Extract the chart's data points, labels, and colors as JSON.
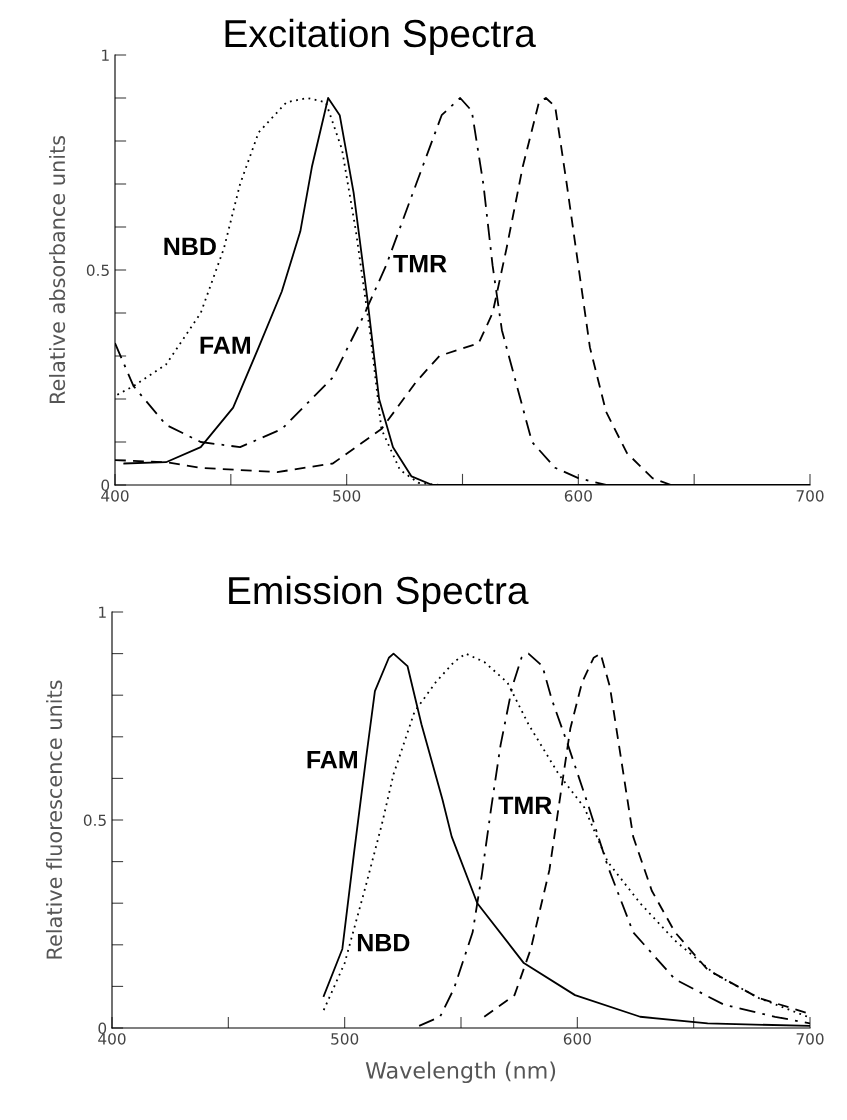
{
  "chart_data": [
    {
      "type": "line",
      "title": "Excitation Spectra",
      "ylabel": "Relative absorbance units",
      "xlim": [
        400,
        700
      ],
      "xticks": [
        400,
        {
          "value": 450,
          "label": null
        },
        500,
        {
          "value": 550,
          "label": null
        },
        600,
        {
          "value": 650,
          "label": null
        },
        700
      ],
      "ylim": [
        0,
        1
      ],
      "yticks": [
        0,
        {
          "value": 0.1,
          "label": null
        },
        {
          "value": 0.2,
          "label": null
        },
        {
          "value": 0.3,
          "label": null
        },
        {
          "value": 0.4,
          "label": null
        },
        0.5,
        {
          "value": 0.6,
          "label": null
        },
        {
          "value": 0.7,
          "label": null
        },
        {
          "value": 0.8,
          "label": null
        },
        {
          "value": 0.9,
          "label": null
        },
        1
      ],
      "grid": false,
      "legend": false,
      "marker": "none",
      "series": [
        {
          "color": "#000000",
          "line_style": "dotted",
          "x": [
            401,
            408,
            422,
            437,
            447,
            454,
            462,
            474,
            483,
            491,
            498,
            504,
            510,
            515,
            523,
            531,
            540,
            700
          ],
          "values": [
            0.21,
            0.23,
            0.28,
            0.4,
            0.55,
            0.7,
            0.82,
            0.89,
            0.9,
            0.89,
            0.78,
            0.59,
            0.36,
            0.13,
            0.035,
            0.005,
            0,
            0
          ]
        },
        {
          "color": "#000000",
          "line_style": "solid",
          "x": [
            404,
            422,
            437,
            451,
            462,
            472,
            480,
            485,
            492,
            497,
            503,
            509,
            514,
            520,
            528,
            537,
            700
          ],
          "values": [
            0.05,
            0.053,
            0.088,
            0.18,
            0.32,
            0.45,
            0.59,
            0.74,
            0.9,
            0.86,
            0.68,
            0.43,
            0.2,
            0.088,
            0.02,
            0,
            0
          ]
        },
        {
          "color": "#000000",
          "line_style": "dashdot",
          "x": [
            400,
            408,
            422,
            437,
            454,
            472,
            494,
            507,
            517,
            530,
            541,
            549,
            554,
            559,
            563,
            567,
            573,
            580,
            590,
            600,
            612,
            700
          ],
          "values": [
            0.33,
            0.23,
            0.14,
            0.1,
            0.088,
            0.13,
            0.25,
            0.39,
            0.51,
            0.7,
            0.86,
            0.9,
            0.87,
            0.7,
            0.51,
            0.36,
            0.24,
            0.1,
            0.04,
            0.016,
            0,
            0
          ]
        },
        {
          "color": "#000000",
          "line_style": "dashed",
          "x": [
            400,
            422,
            437,
            470,
            494,
            515,
            530,
            540,
            557,
            563,
            569,
            576,
            583,
            586,
            590,
            595,
            600,
            605,
            612,
            621,
            632,
            640,
            700
          ],
          "values": [
            0.058,
            0.053,
            0.04,
            0.03,
            0.05,
            0.13,
            0.24,
            0.3,
            0.33,
            0.4,
            0.55,
            0.74,
            0.89,
            0.9,
            0.88,
            0.7,
            0.51,
            0.32,
            0.17,
            0.074,
            0.016,
            0,
            0
          ]
        }
      ],
      "annotations": [
        {
          "text": "NBD",
          "x": 447,
          "y": 0.55
        },
        {
          "text": "FAM",
          "x": 462,
          "y": 0.32
        },
        {
          "text": "TMR",
          "x": 517,
          "y": 0.51
        }
      ]
    },
    {
      "type": "line",
      "title": "Emission Spectra",
      "ylabel": "Relative fluorescence units",
      "xlabel": "Wavelength (nm)",
      "xlim": [
        400,
        700
      ],
      "xticks": [
        400,
        {
          "value": 450,
          "label": null
        },
        500,
        {
          "value": 550,
          "label": null
        },
        600,
        {
          "value": 650,
          "label": null
        },
        700
      ],
      "ylim": [
        0,
        1
      ],
      "yticks": [
        0,
        {
          "value": 0.1,
          "label": null
        },
        {
          "value": 0.2,
          "label": null
        },
        {
          "value": 0.3,
          "label": null
        },
        {
          "value": 0.4,
          "label": null
        },
        0.5,
        {
          "value": 0.6,
          "label": null
        },
        {
          "value": 0.7,
          "label": null
        },
        {
          "value": 0.8,
          "label": null
        },
        {
          "value": 0.9,
          "label": null
        },
        1
      ],
      "grid": false,
      "legend": false,
      "marker": "none",
      "series": [
        {
          "color": "#000000",
          "line_style": "solid",
          "x": [
            491,
            499,
            504,
            509,
            513,
            519,
            521,
            527,
            533,
            542,
            546,
            557,
            577,
            599,
            627,
            656,
            700
          ],
          "values": [
            0.077,
            0.19,
            0.42,
            0.64,
            0.81,
            0.89,
            0.9,
            0.87,
            0.73,
            0.55,
            0.46,
            0.3,
            0.156,
            0.079,
            0.027,
            0.011,
            0.005
          ]
        },
        {
          "color": "#000000",
          "line_style": "dotted",
          "x": [
            491,
            500,
            509,
            516,
            521,
            530,
            539,
            547,
            552,
            560,
            570,
            579,
            592,
            603,
            613,
            627,
            642,
            659,
            678,
            699
          ],
          "values": [
            0.043,
            0.156,
            0.34,
            0.49,
            0.61,
            0.76,
            0.83,
            0.88,
            0.9,
            0.88,
            0.83,
            0.73,
            0.61,
            0.53,
            0.4,
            0.3,
            0.21,
            0.13,
            0.072,
            0.027
          ]
        },
        {
          "color": "#000000",
          "line_style": "dashdot",
          "x": [
            532,
            541,
            547,
            555,
            559,
            563,
            567,
            572,
            576,
            579,
            585,
            589,
            596,
            605,
            613,
            624,
            642,
            663,
            685,
            700
          ],
          "values": [
            0.005,
            0.027,
            0.095,
            0.23,
            0.37,
            0.53,
            0.68,
            0.82,
            0.89,
            0.9,
            0.87,
            0.79,
            0.68,
            0.53,
            0.39,
            0.23,
            0.117,
            0.056,
            0.027,
            0.011
          ]
        },
        {
          "color": "#000000",
          "line_style": "dashed",
          "x": [
            560,
            573,
            580,
            588,
            593,
            597,
            602,
            607,
            610,
            614,
            619,
            624,
            632,
            642,
            656,
            678,
            700
          ],
          "values": [
            0.027,
            0.079,
            0.19,
            0.38,
            0.57,
            0.72,
            0.83,
            0.89,
            0.9,
            0.82,
            0.64,
            0.46,
            0.33,
            0.23,
            0.14,
            0.072,
            0.034
          ]
        }
      ],
      "annotations": [
        {
          "text": "FAM",
          "x": 509,
          "y": 0.64
        },
        {
          "text": "NBD",
          "x": 502,
          "y": 0.2
        },
        {
          "text": "TMR",
          "x": 563,
          "y": 0.53
        }
      ]
    }
  ]
}
